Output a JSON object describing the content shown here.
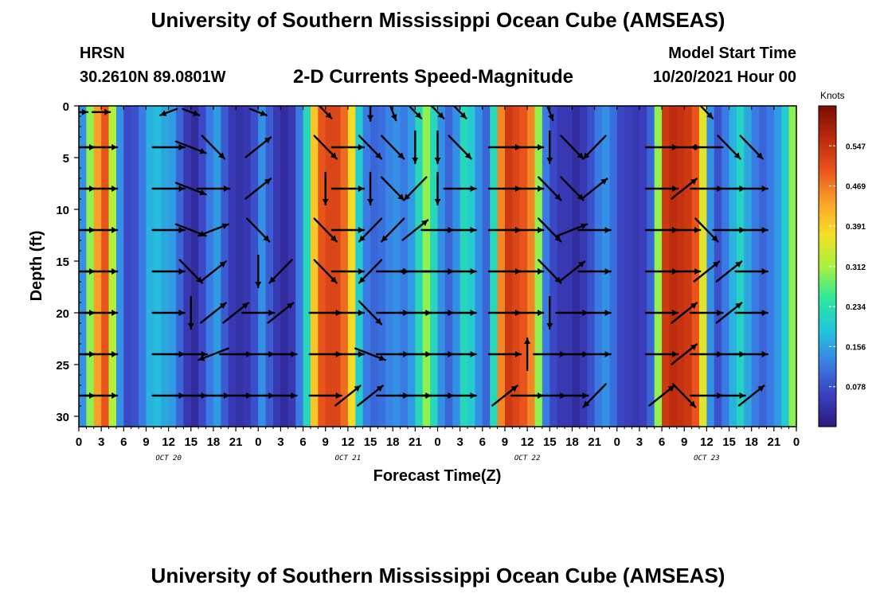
{
  "header": {
    "title": "University of Southern Mississippi Ocean Cube (AMSEAS)",
    "station": "HRSN",
    "coords": "30.2610N  89.0801W",
    "subtitle": "2-D Currents Speed-Magnitude",
    "model_start_label": "Model Start Time",
    "model_start_value": "10/20/2021 Hour 00"
  },
  "footer": {
    "title": "University of Southern Mississippi Ocean Cube (AMSEAS)"
  },
  "colors": {
    "scale": [
      "#2b1a7a",
      "#3b3fc0",
      "#3a7fe6",
      "#22c5dc",
      "#2de89a",
      "#a9f23c",
      "#f4e025",
      "#f9a22a",
      "#e9531c",
      "#bb2a0c",
      "#7a0d04"
    ],
    "arrow": "#000000"
  },
  "chart_data": {
    "type": "heatmap",
    "xlabel": "Forecast Time(Z)",
    "ylabel": "Depth (ft)",
    "x_tick_labels": [
      "0",
      "3",
      "6",
      "9",
      "12",
      "15",
      "18",
      "21",
      "0",
      "3",
      "6",
      "9",
      "12",
      "15",
      "18",
      "21",
      "0",
      "3",
      "6",
      "9",
      "12",
      "15",
      "18",
      "21",
      "0",
      "3",
      "6",
      "9",
      "12",
      "15",
      "18",
      "21",
      "0"
    ],
    "date_labels": [
      {
        "text": "OCT 20",
        "hour": 12
      },
      {
        "text": "OCT 21",
        "hour": 36
      },
      {
        "text": "OCT 22",
        "hour": 60
      },
      {
        "text": "OCT 23",
        "hour": 84
      }
    ],
    "xlim_hours": [
      0,
      96
    ],
    "y_ticks": [
      0,
      5,
      10,
      15,
      20,
      25,
      30
    ],
    "ylim_ft": [
      0,
      31
    ],
    "colorbar": {
      "title": "Knots",
      "ticks": [
        "0.547",
        "0.469",
        "0.391",
        "0.312",
        "0.234",
        "0.156",
        "0.078"
      ],
      "range": [
        0.0,
        0.625
      ]
    },
    "column_speeds_kt": [
      {
        "hour": 0,
        "speed": 0.14
      },
      {
        "hour": 1,
        "speed": 0.3
      },
      {
        "hour": 2,
        "speed": 0.44
      },
      {
        "hour": 3,
        "speed": 0.5
      },
      {
        "hour": 4,
        "speed": 0.32
      },
      {
        "hour": 5,
        "speed": 0.14
      },
      {
        "hour": 6,
        "speed": 0.07
      },
      {
        "hour": 7,
        "speed": 0.08
      },
      {
        "hour": 8,
        "speed": 0.12
      },
      {
        "hour": 9,
        "speed": 0.17
      },
      {
        "hour": 10,
        "speed": 0.18
      },
      {
        "hour": 11,
        "speed": 0.16
      },
      {
        "hour": 12,
        "speed": 0.15
      },
      {
        "hour": 13,
        "speed": 0.1
      },
      {
        "hour": 14,
        "speed": 0.05
      },
      {
        "hour": 15,
        "speed": 0.03
      },
      {
        "hour": 16,
        "speed": 0.07
      },
      {
        "hour": 17,
        "speed": 0.12
      },
      {
        "hour": 18,
        "speed": 0.15
      },
      {
        "hour": 19,
        "speed": 0.09
      },
      {
        "hour": 20,
        "speed": 0.05
      },
      {
        "hour": 21,
        "speed": 0.04
      },
      {
        "hour": 22,
        "speed": 0.05
      },
      {
        "hour": 23,
        "speed": 0.08
      },
      {
        "hour": 24,
        "speed": 0.14
      },
      {
        "hour": 25,
        "speed": 0.09
      },
      {
        "hour": 26,
        "speed": 0.05
      },
      {
        "hour": 27,
        "speed": 0.03
      },
      {
        "hour": 28,
        "speed": 0.05
      },
      {
        "hour": 29,
        "speed": 0.12
      },
      {
        "hour": 30,
        "speed": 0.22
      },
      {
        "hour": 31,
        "speed": 0.4
      },
      {
        "hour": 32,
        "speed": 0.5
      },
      {
        "hour": 33,
        "speed": 0.52
      },
      {
        "hour": 34,
        "speed": 0.52
      },
      {
        "hour": 35,
        "speed": 0.48
      },
      {
        "hour": 36,
        "speed": 0.38
      },
      {
        "hour": 37,
        "speed": 0.2
      },
      {
        "hour": 38,
        "speed": 0.12
      },
      {
        "hour": 39,
        "speed": 0.1
      },
      {
        "hour": 40,
        "speed": 0.11
      },
      {
        "hour": 41,
        "speed": 0.13
      },
      {
        "hour": 42,
        "speed": 0.14
      },
      {
        "hour": 43,
        "speed": 0.12
      },
      {
        "hour": 44,
        "speed": 0.15
      },
      {
        "hour": 45,
        "speed": 0.22
      },
      {
        "hour": 46,
        "speed": 0.3
      },
      {
        "hour": 47,
        "speed": 0.22
      },
      {
        "hour": 48,
        "speed": 0.14
      },
      {
        "hour": 49,
        "speed": 0.1
      },
      {
        "hour": 50,
        "speed": 0.14
      },
      {
        "hour": 51,
        "speed": 0.22
      },
      {
        "hour": 52,
        "speed": 0.2
      },
      {
        "hour": 53,
        "speed": 0.14
      },
      {
        "hour": 54,
        "speed": 0.1
      },
      {
        "hour": 55,
        "speed": 0.22
      },
      {
        "hour": 56,
        "speed": 0.46
      },
      {
        "hour": 57,
        "speed": 0.54
      },
      {
        "hour": 58,
        "speed": 0.52
      },
      {
        "hour": 59,
        "speed": 0.5
      },
      {
        "hour": 60,
        "speed": 0.46
      },
      {
        "hour": 61,
        "speed": 0.3
      },
      {
        "hour": 62,
        "speed": 0.12
      },
      {
        "hour": 63,
        "speed": 0.07
      },
      {
        "hour": 64,
        "speed": 0.05
      },
      {
        "hour": 65,
        "speed": 0.05
      },
      {
        "hour": 66,
        "speed": 0.03
      },
      {
        "hour": 67,
        "speed": 0.05
      },
      {
        "hour": 68,
        "speed": 0.08
      },
      {
        "hour": 69,
        "speed": 0.12
      },
      {
        "hour": 70,
        "speed": 0.14
      },
      {
        "hour": 71,
        "speed": 0.11
      },
      {
        "hour": 72,
        "speed": 0.07
      },
      {
        "hour": 73,
        "speed": 0.06
      },
      {
        "hour": 74,
        "speed": 0.05
      },
      {
        "hour": 75,
        "speed": 0.06
      },
      {
        "hour": 76,
        "speed": 0.1
      },
      {
        "hour": 77,
        "speed": 0.3
      },
      {
        "hour": 78,
        "speed": 0.54
      },
      {
        "hour": 79,
        "speed": 0.56
      },
      {
        "hour": 80,
        "speed": 0.55
      },
      {
        "hour": 81,
        "speed": 0.54
      },
      {
        "hour": 82,
        "speed": 0.5
      },
      {
        "hour": 83,
        "speed": 0.36
      },
      {
        "hour": 84,
        "speed": 0.14
      },
      {
        "hour": 85,
        "speed": 0.08
      },
      {
        "hour": 86,
        "speed": 0.12
      },
      {
        "hour": 87,
        "speed": 0.17
      },
      {
        "hour": 88,
        "speed": 0.21
      },
      {
        "hour": 89,
        "speed": 0.16
      },
      {
        "hour": 90,
        "speed": 0.12
      },
      {
        "hour": 91,
        "speed": 0.1
      },
      {
        "hour": 92,
        "speed": 0.12
      },
      {
        "hour": 93,
        "speed": 0.15
      },
      {
        "hour": 94,
        "speed": 0.2
      },
      {
        "hour": 95,
        "speed": 0.3
      }
    ],
    "arrow_depths_ft": [
      4,
      8,
      12,
      16,
      20,
      24,
      28
    ],
    "arrows": [
      {
        "hour": 0,
        "top_dir": "E",
        "dirs": [
          "E",
          "E",
          "E",
          "E",
          "E",
          "E",
          "E"
        ]
      },
      {
        "hour": 3,
        "top_dir": "E",
        "dirs": [
          "E",
          "E",
          "E",
          "E",
          "E",
          "E",
          "E"
        ]
      },
      {
        "hour": 12,
        "top_dir": "WSW",
        "dirs": [
          "E",
          "E",
          "E",
          "E",
          "E",
          "E",
          "E"
        ]
      },
      {
        "hour": 15,
        "top_dir": "ESE",
        "dirs": [
          "ESE",
          "ESE",
          "ESE",
          "SE",
          "S",
          "E",
          "E"
        ]
      },
      {
        "hour": 18,
        "top_dir": "",
        "dirs": [
          "SE",
          "E",
          "ENE",
          "NE",
          "NE",
          "WSW",
          "E"
        ]
      },
      {
        "hour": 21,
        "top_dir": "",
        "dirs": [
          "",
          "",
          "",
          "",
          "NE",
          "E",
          "E"
        ]
      },
      {
        "hour": 24,
        "top_dir": "ESE",
        "dirs": [
          "NE",
          "NE",
          "SE",
          "S",
          "E",
          "E",
          "E"
        ]
      },
      {
        "hour": 27,
        "top_dir": "",
        "dirs": [
          "",
          "",
          "",
          "SW",
          "NE",
          "E",
          "E"
        ]
      },
      {
        "hour": 33,
        "top_dir": "SE",
        "dirs": [
          "SE",
          "S",
          "SE",
          "SE",
          "E",
          "E",
          "E"
        ]
      },
      {
        "hour": 36,
        "top_dir": "",
        "dirs": [
          "E",
          "E",
          "E",
          "E",
          "E",
          "E",
          "NE"
        ]
      },
      {
        "hour": 39,
        "top_dir": "S",
        "dirs": [
          "SE",
          "S",
          "SW",
          "SW",
          "SE",
          "ESE",
          "NE"
        ]
      },
      {
        "hour": 42,
        "top_dir": "SSE",
        "dirs": [
          "SE",
          "SE",
          "SW",
          "E",
          "E",
          "E",
          "E"
        ]
      },
      {
        "hour": 45,
        "top_dir": "SE",
        "dirs": [
          "S",
          "SW",
          "NE",
          "W",
          "E",
          "E",
          "E"
        ]
      },
      {
        "hour": 48,
        "top_dir": "SE",
        "dirs": [
          "S",
          "S",
          "E",
          "E",
          "E",
          "E",
          "E"
        ]
      },
      {
        "hour": 51,
        "top_dir": "SE",
        "dirs": [
          "SE",
          "E",
          "E",
          "E",
          "E",
          "E",
          "E"
        ]
      },
      {
        "hour": 57,
        "top_dir": "",
        "dirs": [
          "E",
          "E",
          "E",
          "E",
          "E",
          "E",
          "NE"
        ]
      },
      {
        "hour": 60,
        "top_dir": "",
        "dirs": [
          "E",
          "E",
          "E",
          "E",
          "E",
          "N",
          "E"
        ]
      },
      {
        "hour": 63,
        "top_dir": "SSE",
        "dirs": [
          "S",
          "SE",
          "SE",
          "SE",
          "S",
          "E",
          "E"
        ]
      },
      {
        "hour": 66,
        "top_dir": "",
        "dirs": [
          "SE",
          "SE",
          "ENE",
          "NE",
          "E",
          "E",
          "E"
        ]
      },
      {
        "hour": 69,
        "top_dir": "",
        "dirs": [
          "SW",
          "NE",
          "E",
          "E",
          "E",
          "E",
          "SW"
        ]
      },
      {
        "hour": 78,
        "top_dir": "",
        "dirs": [
          "E",
          "E",
          "E",
          "E",
          "E",
          "E",
          "NE"
        ]
      },
      {
        "hour": 81,
        "top_dir": "",
        "dirs": [
          "E",
          "NE",
          "E",
          "E",
          "NE",
          "NE",
          "SE"
        ]
      },
      {
        "hour": 84,
        "top_dir": "SE",
        "dirs": [
          "W",
          "E",
          "SE",
          "NE",
          "E",
          "E",
          "E"
        ]
      },
      {
        "hour": 87,
        "top_dir": "",
        "dirs": [
          "SE",
          "E",
          "E",
          "NE",
          "NE",
          "E",
          "E"
        ]
      },
      {
        "hour": 90,
        "top_dir": "",
        "dirs": [
          "SE",
          "E",
          "E",
          "E",
          "E",
          "E",
          "NE"
        ]
      }
    ]
  }
}
